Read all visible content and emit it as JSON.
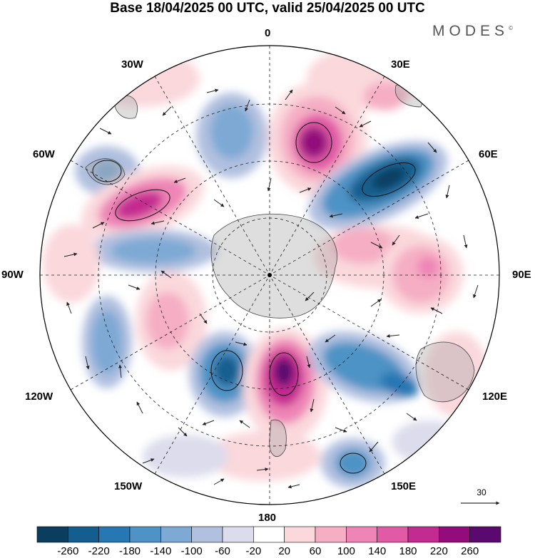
{
  "title": "Base 18/04/2025 00 UTC, valid 25/04/2025 00 UTC",
  "brand": "MODES",
  "brand_mark": "©",
  "longitudes": {
    "top": "0",
    "bottom": "180",
    "left": "90W",
    "right": "90E",
    "w30": "30W",
    "e30": "30E",
    "w60": "60W",
    "e60": "60E",
    "w120": "120W",
    "e120": "120E",
    "w150": "150W",
    "e150": "150E"
  },
  "vector_reference": "30",
  "colorbar": {
    "labels": [
      "-260",
      "-220",
      "-180",
      "-140",
      "-100",
      "-60",
      "-20",
      "20",
      "60",
      "100",
      "140",
      "180",
      "220",
      "260"
    ],
    "colors": [
      "#0b3d5e",
      "#135e8f",
      "#2677b3",
      "#4d93c5",
      "#7da9d4",
      "#b1c0df",
      "#dcdcec",
      "#ffffff",
      "#fad8dc",
      "#f5aec4",
      "#ee85b6",
      "#e05aa5",
      "#c42b90",
      "#930c7c",
      "#5a0a6e"
    ]
  },
  "icons": [
    "polar-map",
    "reference-arrow-icon"
  ]
}
